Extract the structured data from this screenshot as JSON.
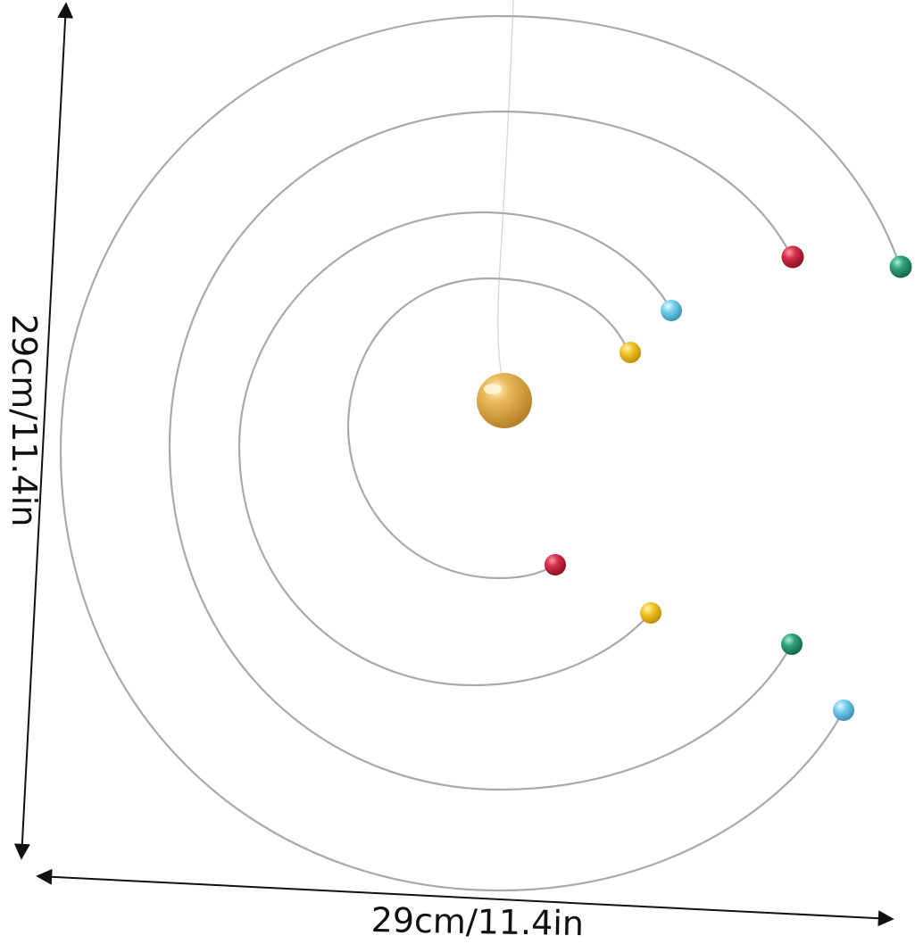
{
  "dimensions": {
    "width_label": "29cm/11.4in",
    "height_label": "29cm/11.4in"
  },
  "colors": {
    "wire": "#a9aaa8",
    "sun": "#d9a441",
    "red": "#c8243c",
    "yellow": "#f0c020",
    "cyan": "#6cc7e6",
    "green": "#2e9b78",
    "arrow": "#111111"
  },
  "objects": {
    "sun": "gold-sphere",
    "planets": [
      "red-bead",
      "yellow-bead",
      "cyan-bead",
      "green-bead"
    ]
  }
}
